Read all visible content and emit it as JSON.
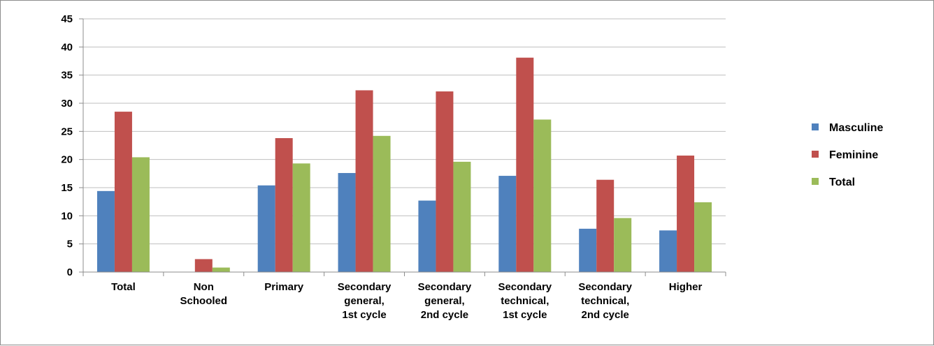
{
  "chart_data": {
    "type": "bar",
    "categories": [
      [
        "Total"
      ],
      [
        "Non",
        "Schooled"
      ],
      [
        "Primary"
      ],
      [
        "Secondary",
        "general,",
        "1st cycle"
      ],
      [
        "Secondary",
        "general,",
        "2nd cycle"
      ],
      [
        "Secondary",
        "technical,",
        "1st cycle"
      ],
      [
        "Secondary",
        "technical,",
        "2nd cycle"
      ],
      [
        "Higher"
      ]
    ],
    "series": [
      {
        "name": "Masculine",
        "color": "#4f81bd",
        "values": [
          14.4,
          0,
          15.4,
          17.6,
          12.7,
          17.1,
          7.7,
          7.4
        ]
      },
      {
        "name": "Feminine",
        "color": "#c0504d",
        "values": [
          28.5,
          2.3,
          23.8,
          32.3,
          32.1,
          38.1,
          16.4,
          20.7
        ]
      },
      {
        "name": "Total",
        "color": "#9bbb59",
        "values": [
          20.4,
          0.8,
          19.3,
          24.2,
          19.6,
          27.1,
          9.6,
          12.4
        ]
      }
    ],
    "ylim": [
      0,
      45
    ],
    "yticks": [
      0,
      5,
      10,
      15,
      20,
      25,
      30,
      35,
      40,
      45
    ],
    "grid": true,
    "legend_position": "right"
  }
}
